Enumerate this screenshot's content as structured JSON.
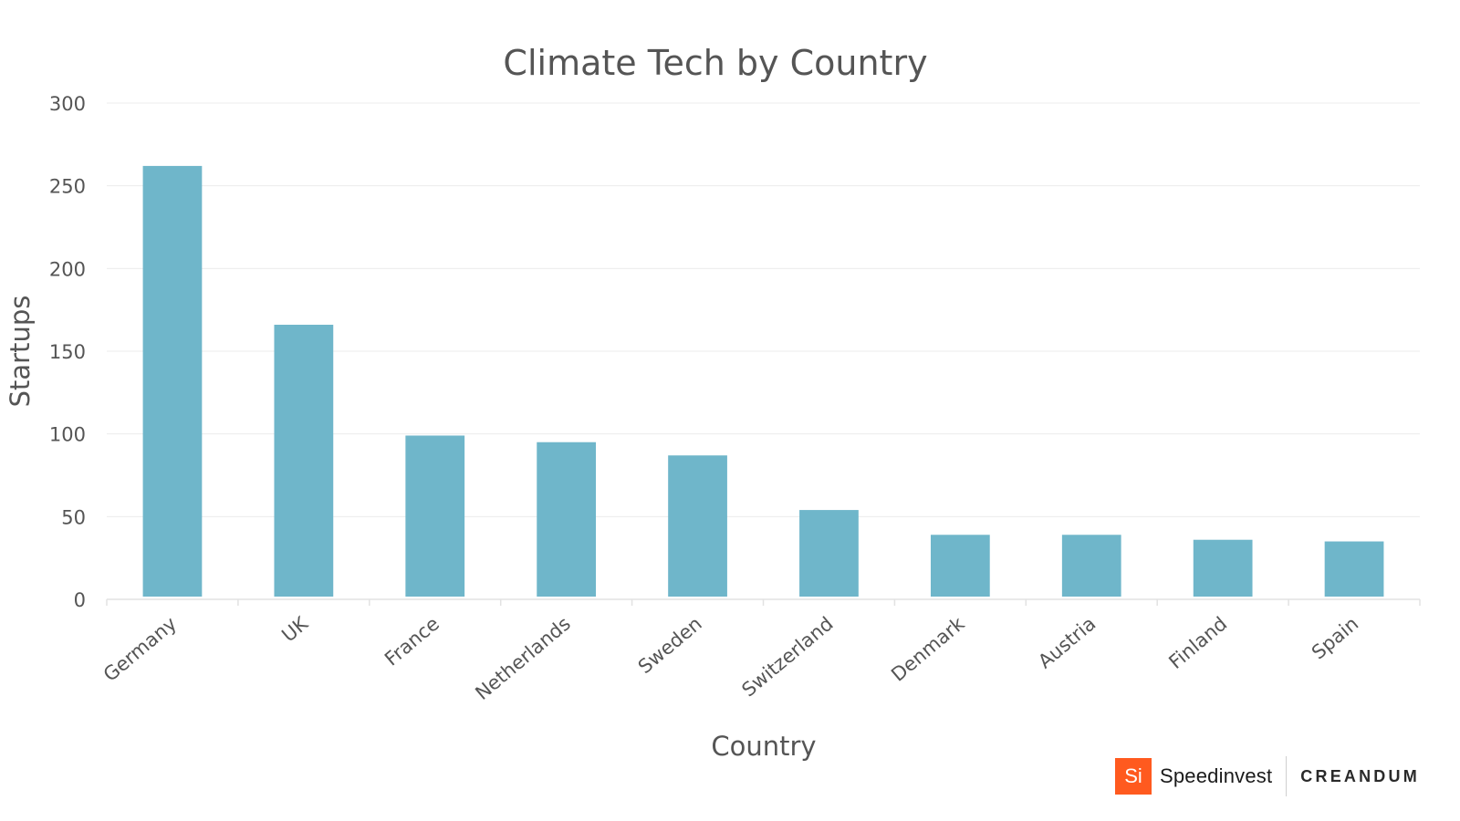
{
  "chart_data": {
    "type": "bar",
    "title": "Climate Tech by Country",
    "xlabel": "Country",
    "ylabel": "Startups",
    "categories": [
      "Germany",
      "UK",
      "France",
      "Netherlands",
      "Sweden",
      "Switzerland",
      "Denmark",
      "Austria",
      "Finland",
      "Spain"
    ],
    "values": [
      262,
      166,
      99,
      95,
      87,
      54,
      39,
      39,
      36,
      35
    ],
    "ylim": [
      0,
      300
    ],
    "yticks": [
      "0",
      "50",
      "100",
      "150",
      "200",
      "250",
      "300"
    ],
    "grid": true,
    "bar_color": "#6fb6ca"
  },
  "logos": {
    "speedinvest_badge": "Si",
    "speedinvest_name": "Speedinvest",
    "creandum_name": "CREANDUM",
    "badge_color": "#ff5a1f"
  }
}
